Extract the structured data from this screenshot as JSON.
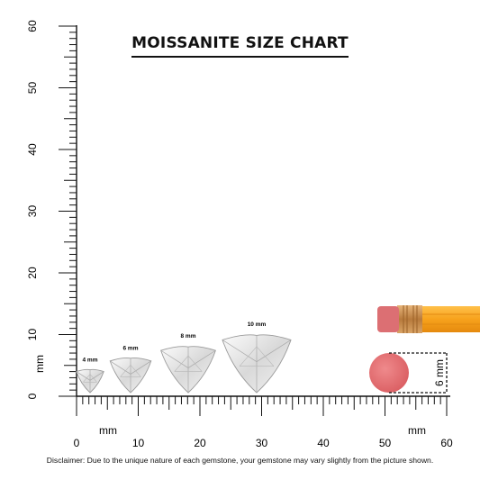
{
  "title": "MOISSANITE SIZE CHART",
  "gems": [
    {
      "size_mm": 4,
      "label": "4 mm"
    },
    {
      "size_mm": 6,
      "label": "6 mm"
    },
    {
      "size_mm": 8,
      "label": "8 mm"
    },
    {
      "size_mm": 10,
      "label": "10 mm"
    }
  ],
  "ruler_x": {
    "unit_label": "mm",
    "tick_labels": [
      "0",
      "10",
      "20",
      "30",
      "40",
      "50",
      "60"
    ]
  },
  "ruler_y": {
    "unit_label": "mm",
    "tick_labels": [
      "0",
      "10",
      "20",
      "30",
      "40",
      "50",
      "60"
    ]
  },
  "eraser_dimension_label": "6 mm",
  "colors": {
    "eraser": "#e0676a",
    "pencil_body": "#f7a21c",
    "ferrule": "#c98e4a",
    "ink": "#111111"
  },
  "disclaimer": "Disclaimer: Due to the unique nature of each gemstone, your gemstone may vary slightly from the picture shown."
}
